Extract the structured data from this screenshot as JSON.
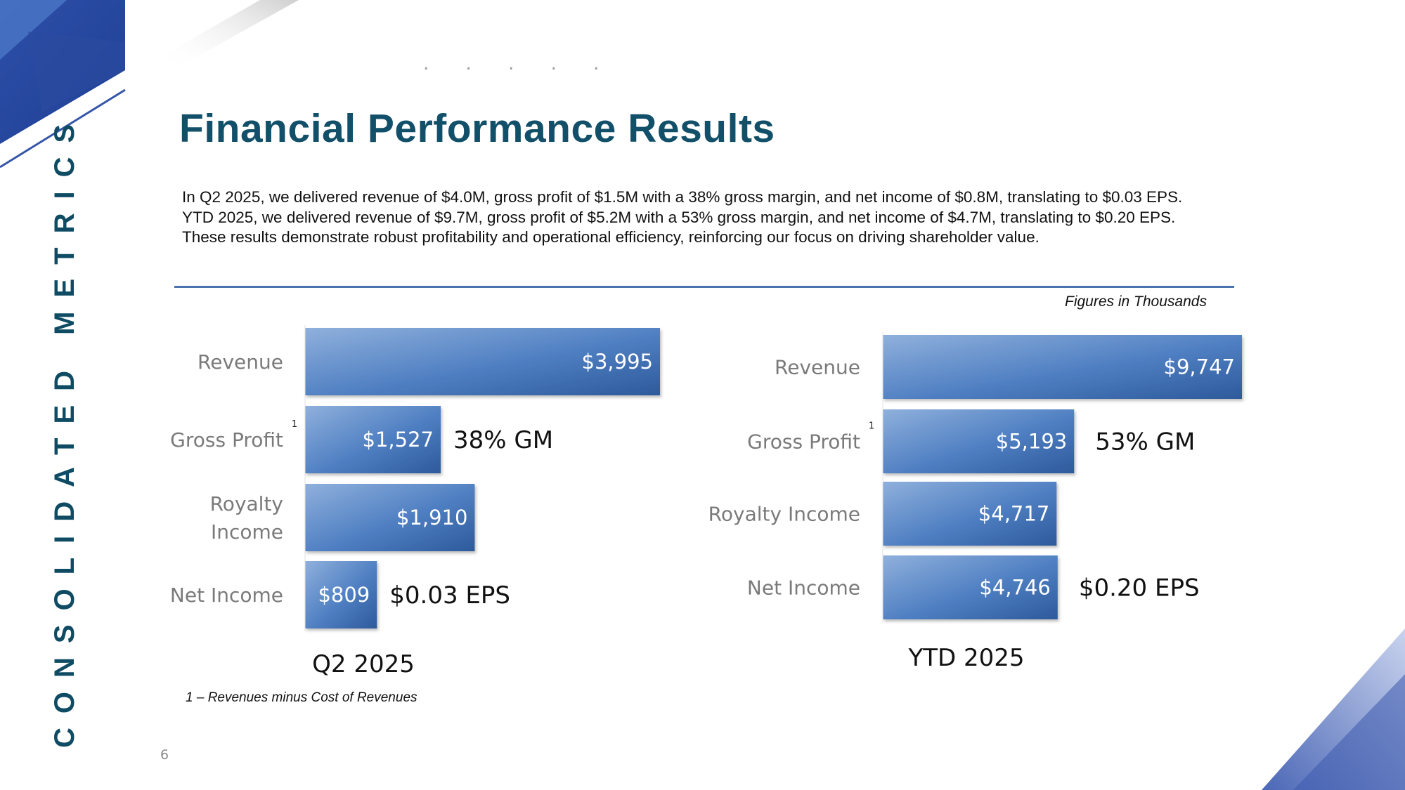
{
  "page": {
    "side_title": "CONSOLIDATED METRICS",
    "title": "Financial Performance Results",
    "intro_lines": [
      "In Q2 2025, we delivered revenue of $4.0M, gross profit of $1.5M with a 38% gross margin, and net income of $0.8M, translating to $0.03 EPS.",
      "YTD 2025, we delivered revenue of $9.7M, gross profit of $5.2M with a 53% gross margin, and net income of $4.7M, translating to $0.20 EPS.",
      "These results demonstrate robust profitability and operational efficiency, reinforcing our focus on driving shareholder value."
    ],
    "figures_note": "Figures in Thousands",
    "footnote": "1 – Revenues minus Cost of Revenues",
    "page_number": "6",
    "dots": ". . . . ."
  },
  "colors": {
    "accent": "#12506a",
    "bar_light": "#8fb0dc",
    "bar_mid": "#4f7fc2",
    "bar_dark": "#2d5a9b",
    "rule": "#4a72ad"
  },
  "chart_data": [
    {
      "type": "bar",
      "orientation": "horizontal",
      "label": "Q2 2025",
      "categories": [
        "Revenue",
        "Gross Profit",
        "Royalty Income",
        "Net Income"
      ],
      "category_lines": [
        [
          "Revenue"
        ],
        [
          "Gross Profit"
        ],
        [
          "Royalty",
          "Income"
        ],
        [
          "Net Income"
        ]
      ],
      "values": [
        3995,
        1527,
        1910,
        809
      ],
      "value_labels": [
        "$3,995",
        "$1,527",
        "$1,910",
        "$809"
      ],
      "superscripts": [
        "",
        "1",
        "",
        ""
      ],
      "annotations": [
        "",
        "38% GM",
        "",
        "$0.03 EPS"
      ],
      "units": "Thousands"
    },
    {
      "type": "bar",
      "orientation": "horizontal",
      "label": "YTD 2025",
      "categories": [
        "Revenue",
        "Gross Profit",
        "Royalty Income",
        "Net Income"
      ],
      "category_lines": [
        [
          "Revenue"
        ],
        [
          "Gross Profit"
        ],
        [
          "Royalty Income"
        ],
        [
          "Net Income"
        ]
      ],
      "values": [
        9747,
        5193,
        4717,
        4746
      ],
      "value_labels": [
        "$9,747",
        "$5,193",
        "$4,717",
        "$4,746"
      ],
      "superscripts": [
        "",
        "1",
        "",
        ""
      ],
      "annotations": [
        "",
        "53% GM",
        "",
        "$0.20 EPS"
      ],
      "units": "Thousands"
    }
  ]
}
